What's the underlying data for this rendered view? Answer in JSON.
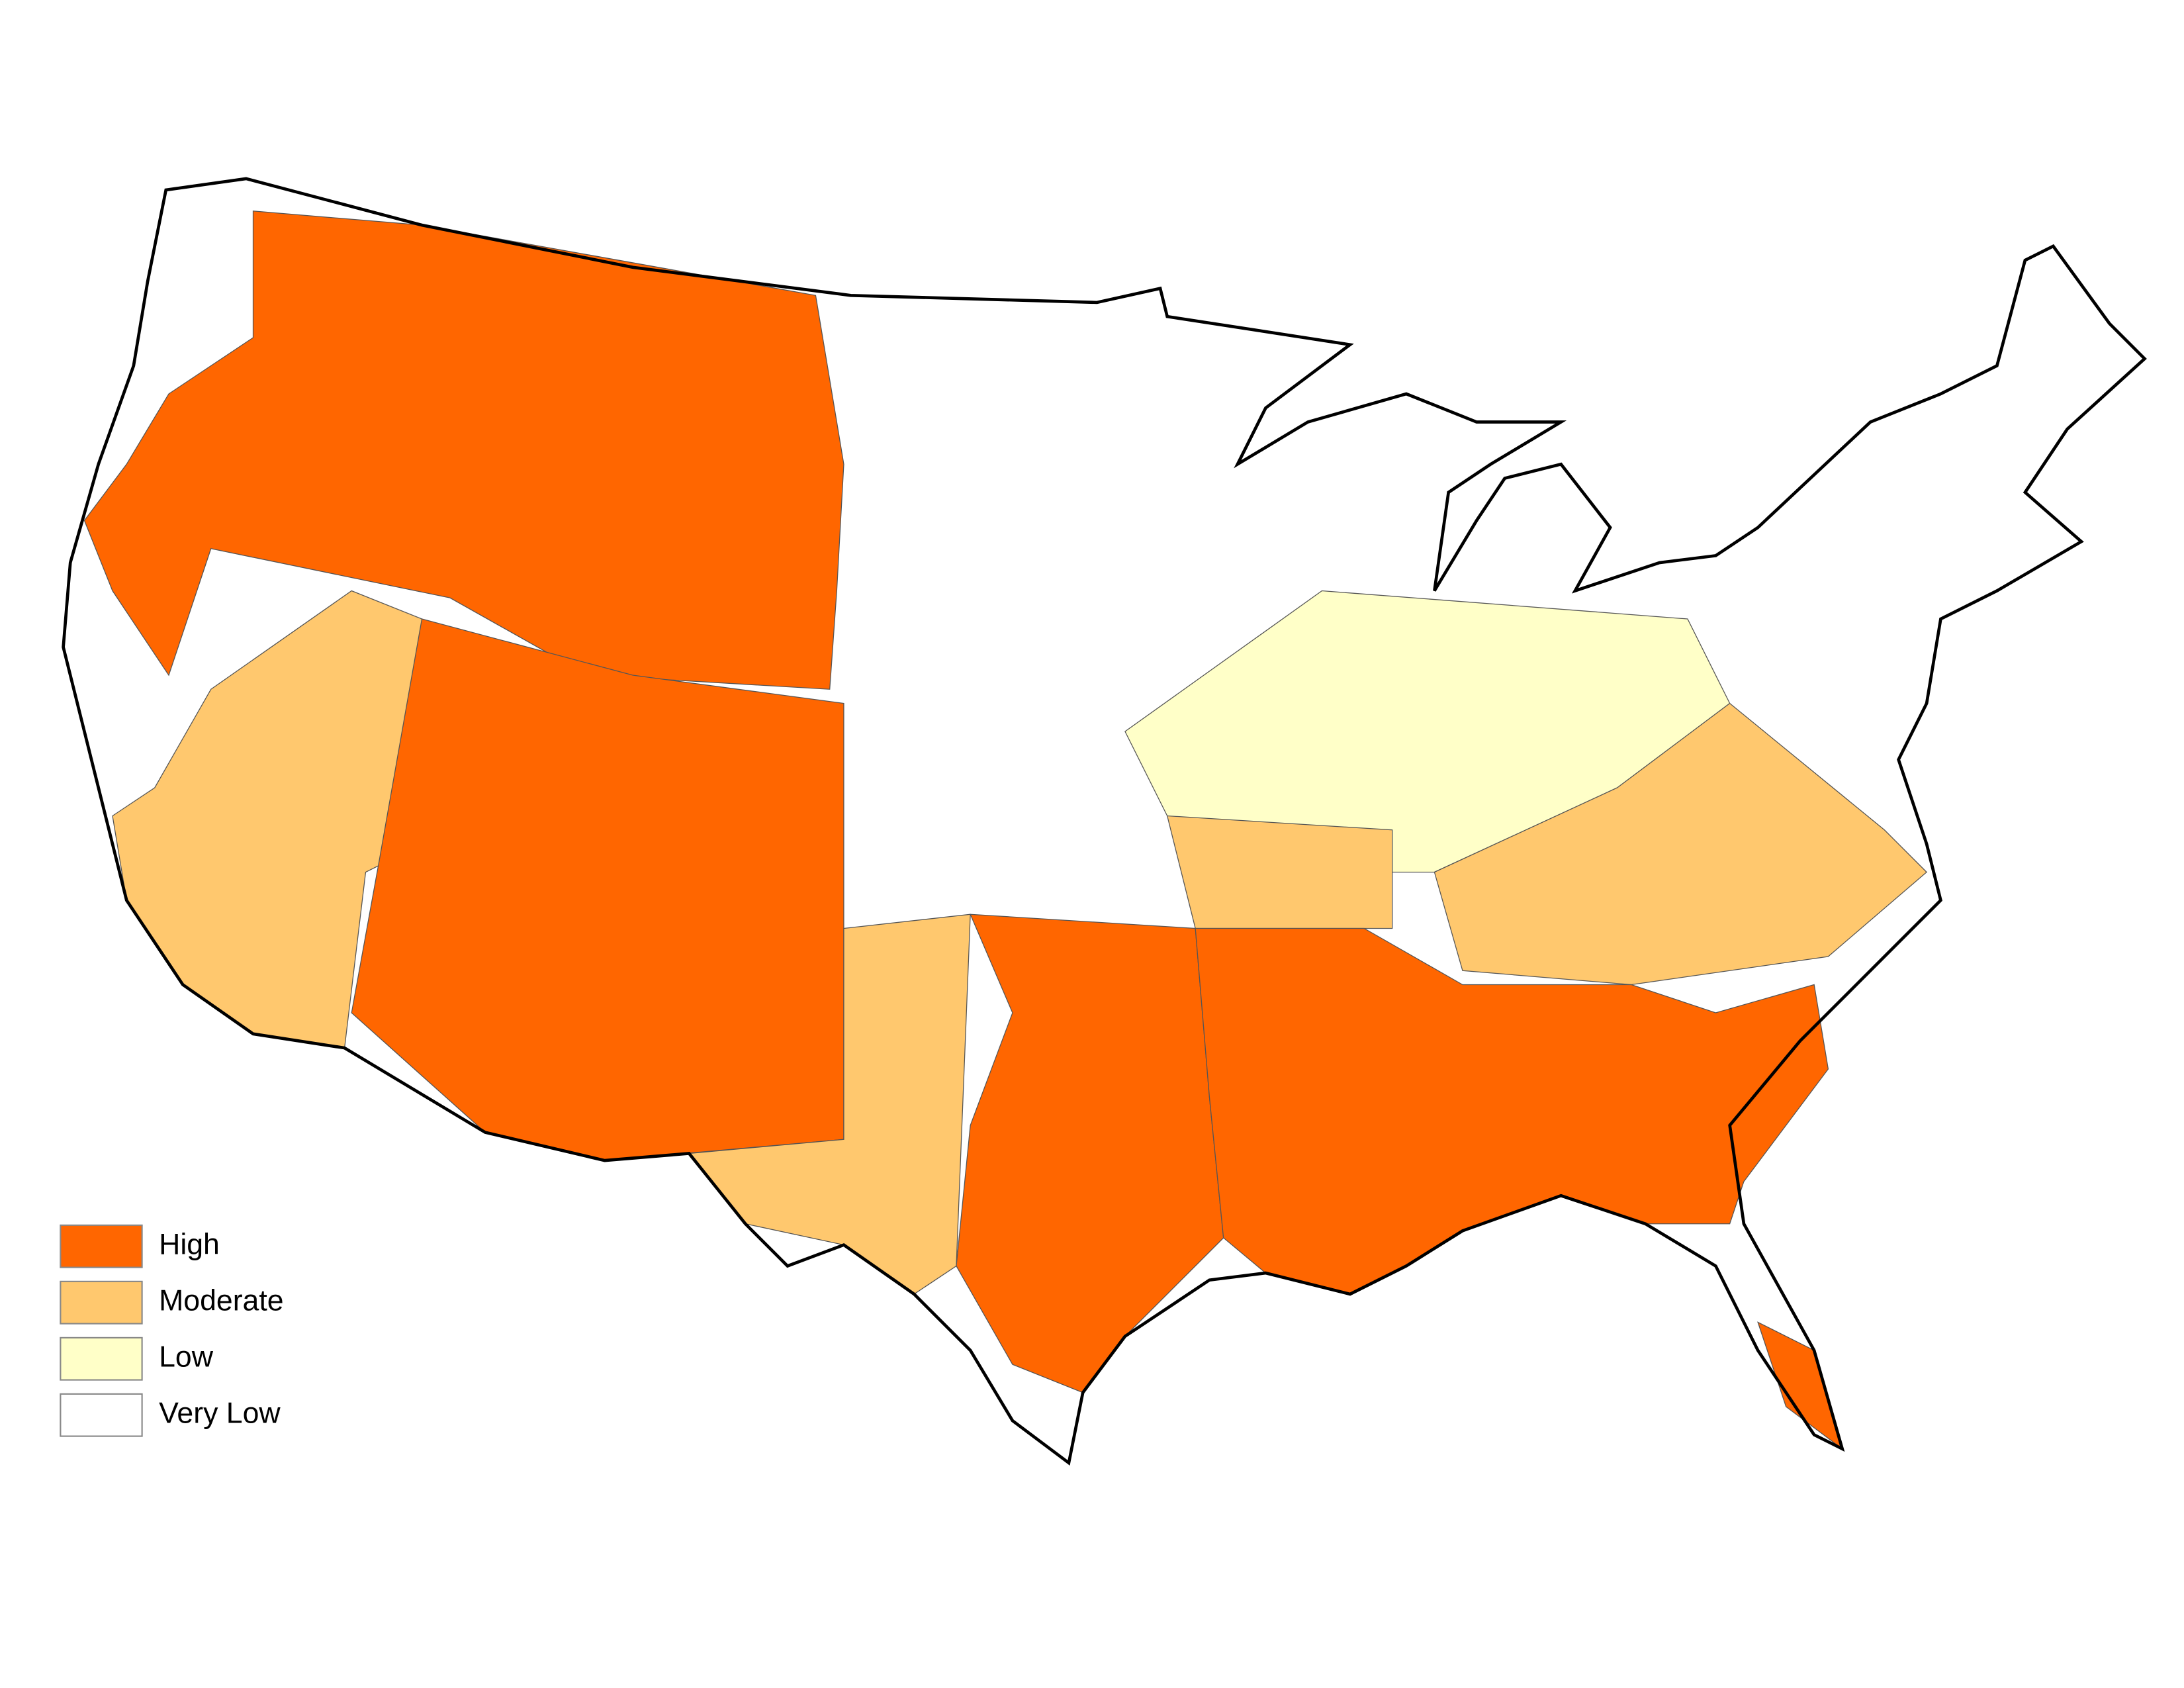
{
  "legend": {
    "items": [
      {
        "label": "High",
        "color": "#ff6600"
      },
      {
        "label": "Moderate",
        "color": "#ffc86e"
      },
      {
        "label": "Low",
        "color": "#ffffc8"
      },
      {
        "label": "Very Low",
        "color": "#ffffff"
      }
    ]
  }
}
